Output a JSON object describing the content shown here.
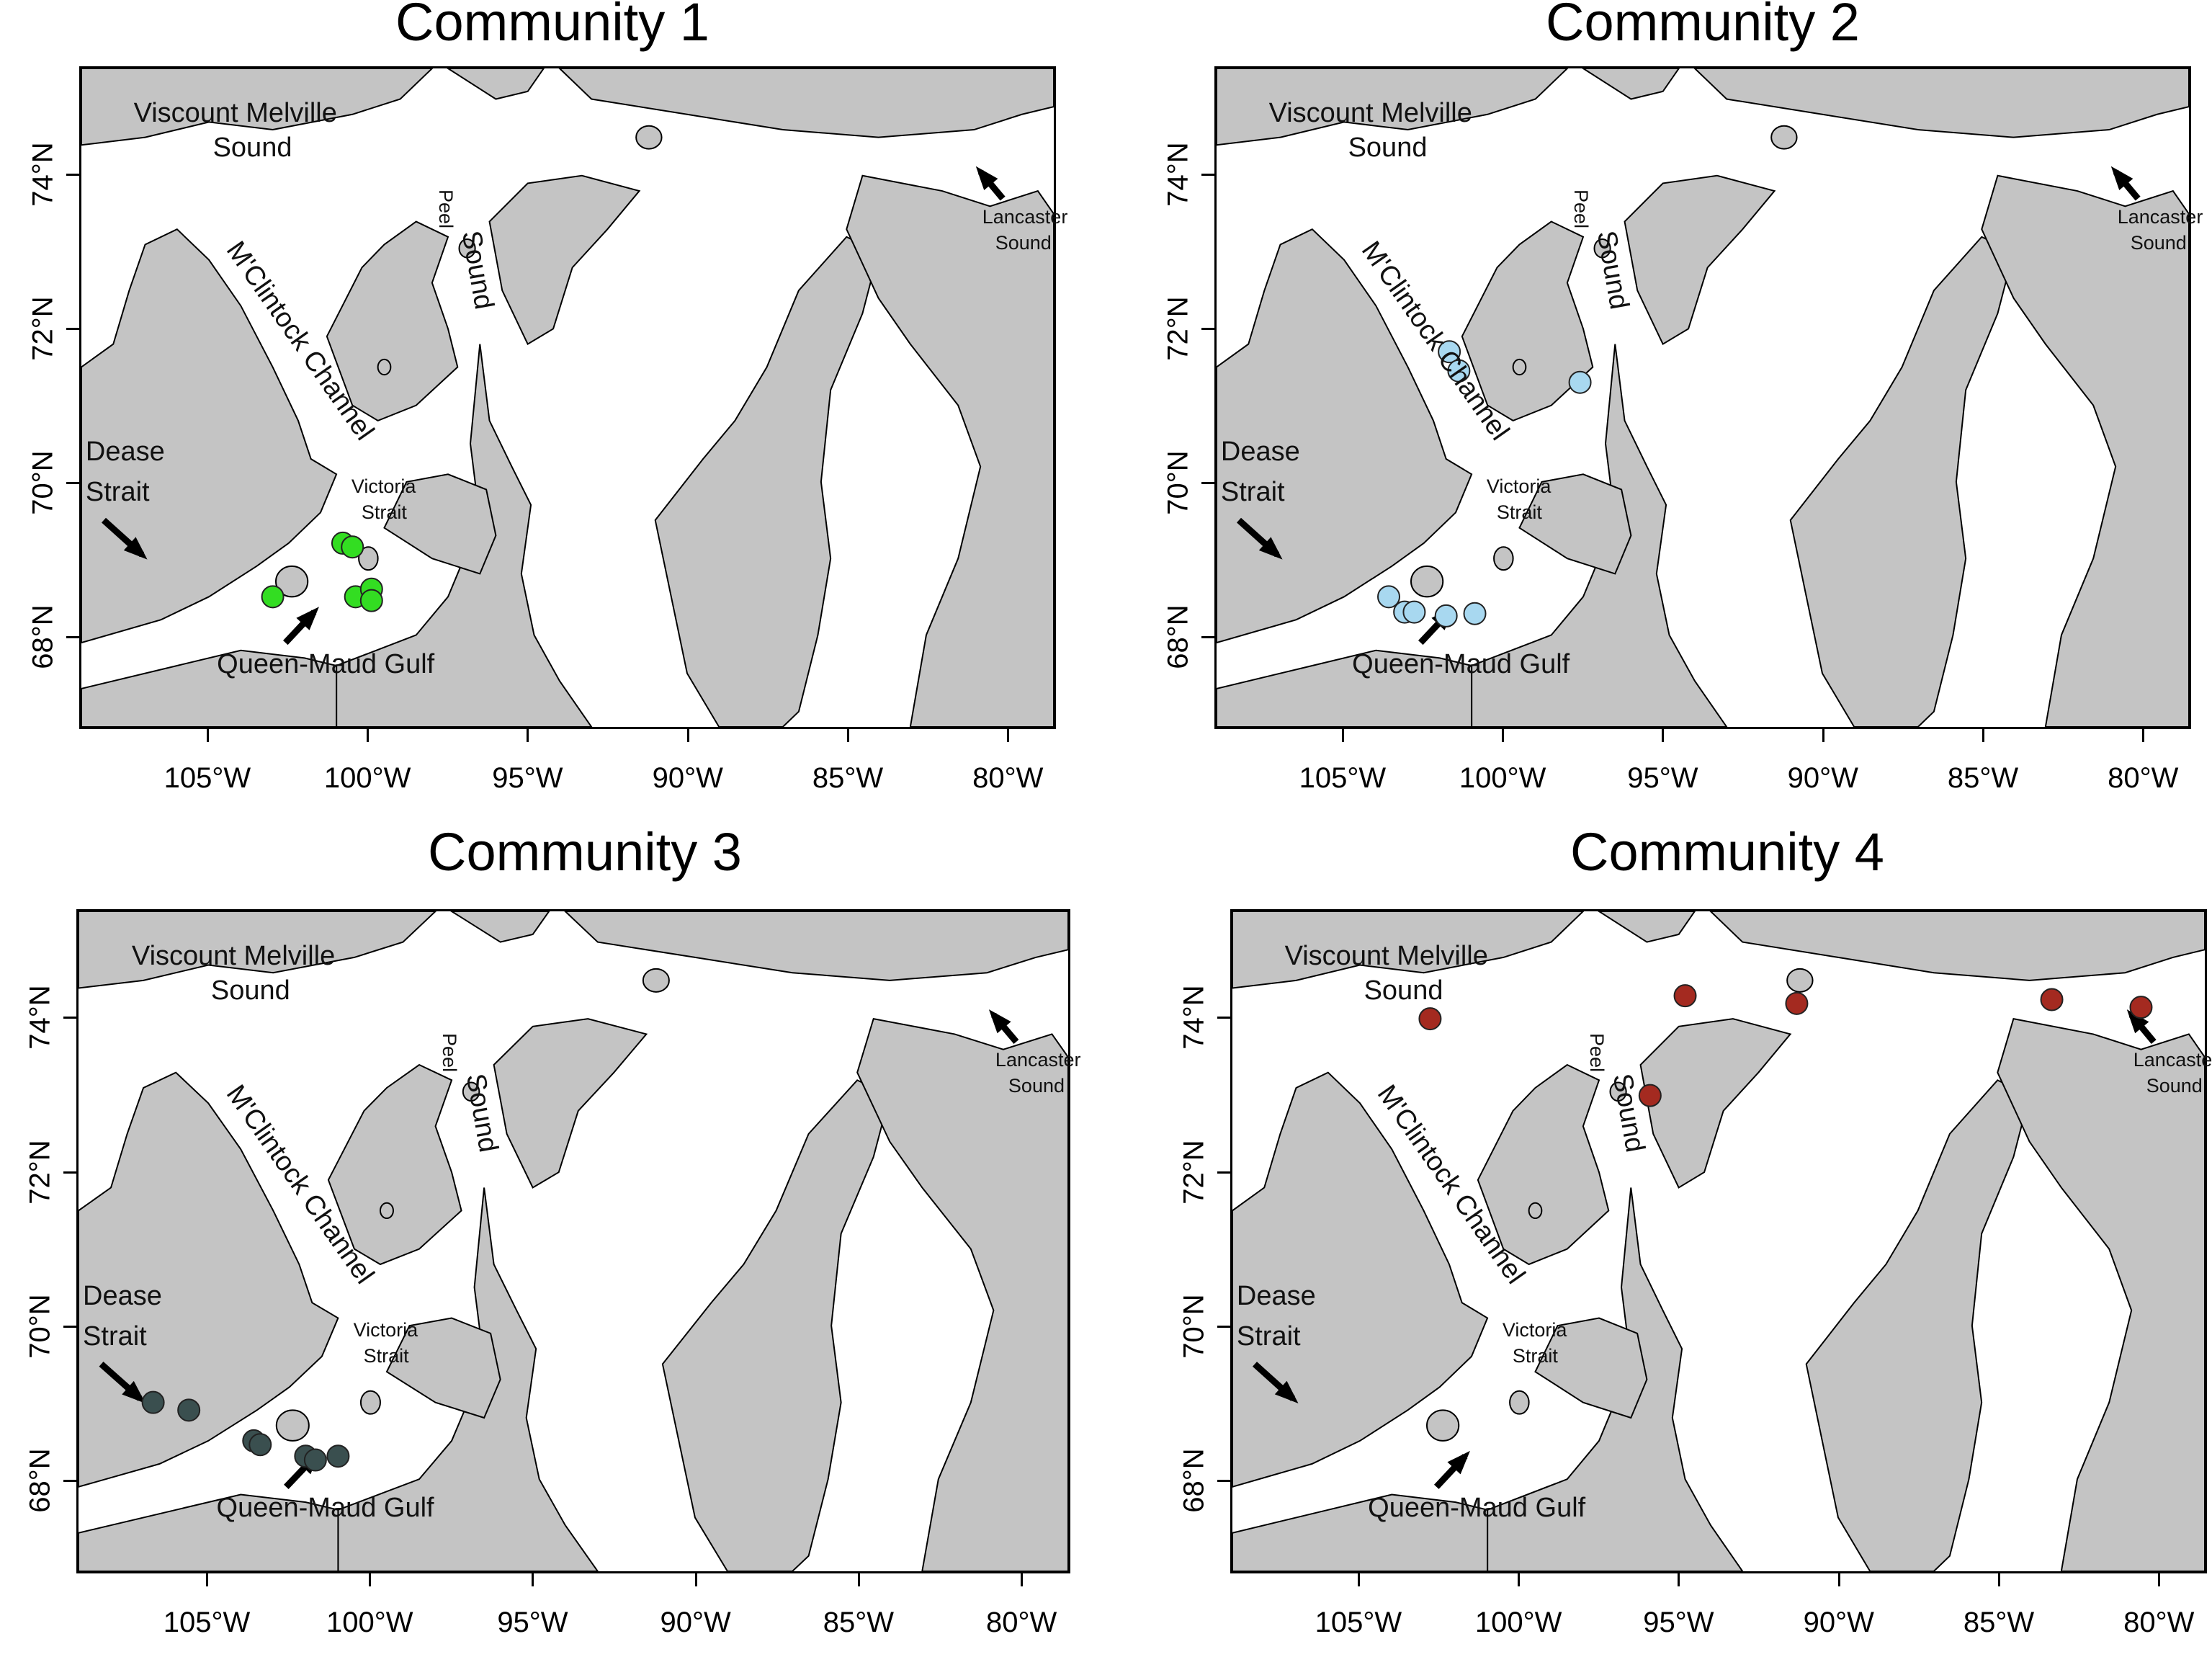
{
  "panels": [
    {
      "title": "Community 1",
      "color": "#33dd22",
      "points": [
        [
          -103.0,
          68.5
        ],
        [
          -100.8,
          69.2
        ],
        [
          -100.5,
          69.15
        ],
        [
          -100.4,
          68.5
        ],
        [
          -99.9,
          68.6
        ],
        [
          -99.9,
          68.45
        ]
      ]
    },
    {
      "title": "Community 2",
      "color": "#a8d8f0",
      "points": [
        [
          -101.7,
          71.7
        ],
        [
          -101.4,
          71.45
        ],
        [
          -97.6,
          71.3
        ],
        [
          -103.6,
          68.5
        ],
        [
          -103.1,
          68.3
        ],
        [
          -102.8,
          68.3
        ],
        [
          -101.8,
          68.25
        ],
        [
          -100.9,
          68.28
        ]
      ]
    },
    {
      "title": "Community 3",
      "color": "#3a4f4f",
      "points": [
        [
          -106.7,
          69.0
        ],
        [
          -105.6,
          68.9
        ],
        [
          -103.6,
          68.5
        ],
        [
          -103.4,
          68.45
        ],
        [
          -102.0,
          68.3
        ],
        [
          -101.7,
          68.25
        ],
        [
          -101.0,
          68.3
        ]
      ]
    },
    {
      "title": "Community 4",
      "color": "#a42a20",
      "points": [
        [
          -102.8,
          74.0
        ],
        [
          -94.8,
          74.3
        ],
        [
          -91.3,
          74.2
        ],
        [
          -83.3,
          74.25
        ],
        [
          -80.5,
          74.15
        ],
        [
          -95.9,
          73.0
        ]
      ]
    }
  ],
  "x_ticks": [
    "105°W",
    "100°W",
    "95°W",
    "90°W",
    "85°W",
    "80°W"
  ],
  "y_ticks": [
    "68°N",
    "70°N",
    "72°N",
    "74°N"
  ],
  "x_tick_values": [
    -105,
    -100,
    -95,
    -90,
    -85,
    -80
  ],
  "y_tick_values": [
    68,
    70,
    72,
    74
  ],
  "extent": {
    "lon": [
      -109,
      -78.5
    ],
    "lat": [
      66.8,
      75.4
    ]
  },
  "labels": {
    "viscount1": "Viscount Melville",
    "viscount2": "Sound",
    "mclintock": "M'Clintock Channel",
    "peel": "Peel",
    "sound": "Sound",
    "lancaster1": "Lancaster",
    "lancaster2": "Sound",
    "dease1": "Dease",
    "dease2": "Strait",
    "victoria1": "Victoria",
    "victoria2": "Strait",
    "queenmaud": "Queen-Maud Gulf"
  },
  "colors": {
    "land": "#c4c4c4",
    "water": "#ffffff",
    "outline": "#000000"
  }
}
